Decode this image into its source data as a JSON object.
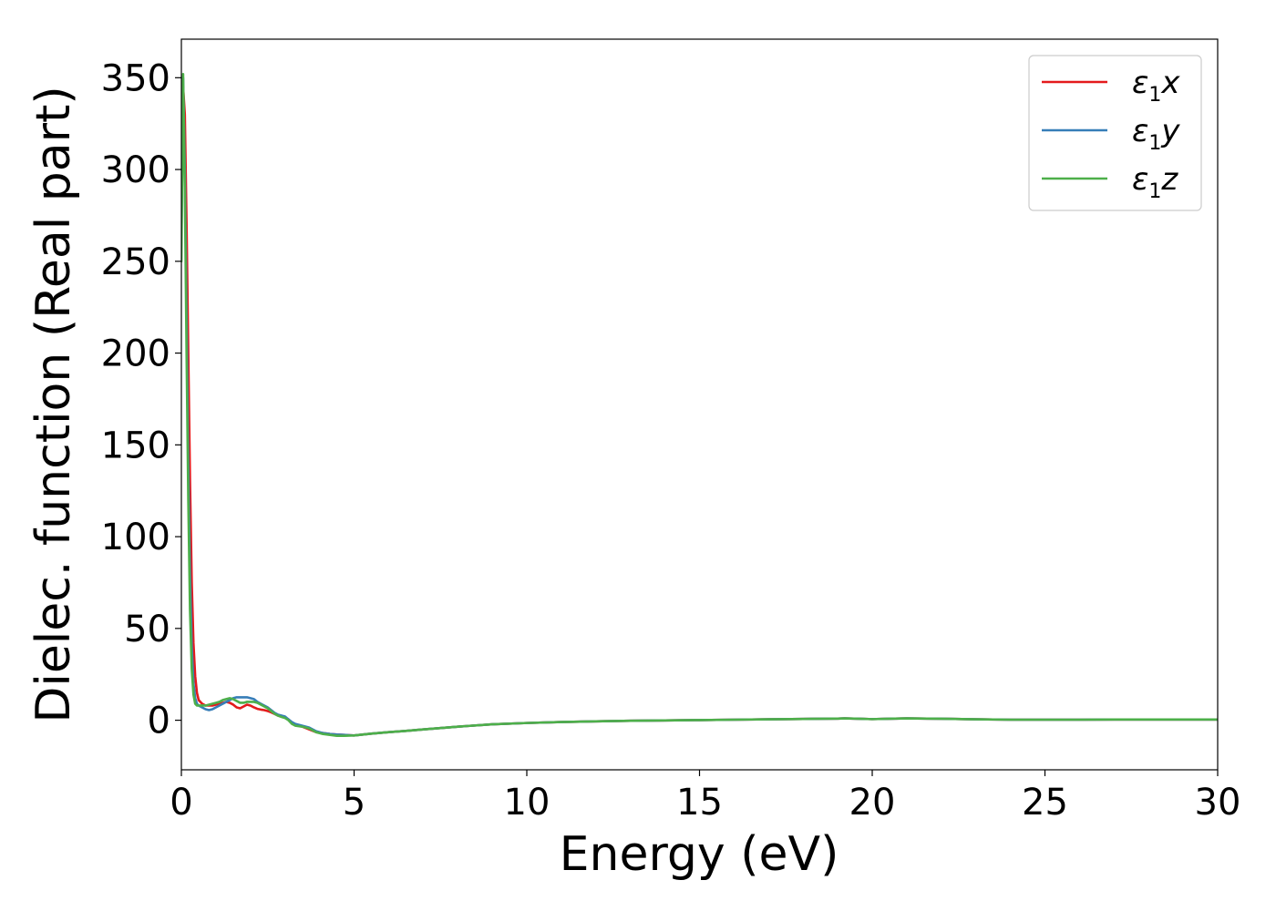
{
  "chart_data": {
    "type": "line",
    "xlabel": "Energy (eV)",
    "ylabel": "Dielec. function (Real part)",
    "xlim": [
      0,
      30
    ],
    "ylim": [
      -27,
      371
    ],
    "xticks": [
      0,
      5,
      10,
      15,
      20,
      25,
      30
    ],
    "yticks": [
      0,
      50,
      100,
      150,
      200,
      250,
      300,
      350
    ],
    "grid": false,
    "legend_position": "top-right",
    "series": [
      {
        "name": "ε1x",
        "legend_base": "ε",
        "legend_sub": "1",
        "legend_suffix": "x",
        "color": "#e41a1c",
        "x": [
          0.0,
          0.05,
          0.1,
          0.15,
          0.2,
          0.25,
          0.3,
          0.35,
          0.4,
          0.45,
          0.5,
          0.6,
          0.7,
          0.8,
          0.9,
          1.0,
          1.1,
          1.2,
          1.3,
          1.4,
          1.5,
          1.6,
          1.7,
          1.8,
          1.9,
          2.0,
          2.1,
          2.2,
          2.3,
          2.4,
          2.5,
          2.6,
          2.7,
          2.8,
          2.9,
          3.0,
          3.1,
          3.2,
          3.3,
          3.5,
          3.7,
          3.9,
          4.1,
          4.3,
          4.5,
          4.7,
          5.0,
          5.5,
          6.0,
          6.5,
          7.0,
          8.0,
          9.0,
          10.0,
          11.0,
          12.0,
          13.0,
          14.0,
          15.0,
          16.0,
          17.0,
          18.0,
          19.0,
          19.2,
          19.6,
          20.0,
          20.5,
          21.0,
          22.0,
          23.0,
          24.0,
          25.0,
          26.0,
          27.0,
          28.0,
          29.0,
          30.0
        ],
        "y": [
          290,
          345,
          330,
          270,
          200,
          130,
          75,
          42,
          24,
          15,
          11,
          9,
          8,
          8,
          8,
          8.5,
          9,
          9.5,
          10,
          9.5,
          8.5,
          7,
          6.5,
          7.5,
          8.5,
          8,
          7,
          6.2,
          5.8,
          5.5,
          5,
          4.3,
          3.4,
          2.5,
          2,
          1.5,
          0.5,
          -1.5,
          -2.5,
          -3.5,
          -5,
          -6.5,
          -7,
          -7.5,
          -7.8,
          -8,
          -8.3,
          -7.3,
          -6.5,
          -5.8,
          -5,
          -3.5,
          -2.2,
          -1.5,
          -1,
          -0.6,
          -0.3,
          -0.1,
          0.1,
          0.3,
          0.5,
          0.7,
          0.9,
          1.0,
          0.8,
          0.6,
          0.8,
          1.0,
          0.8,
          0.5,
          0.3,
          0.3,
          0.3,
          0.4,
          0.4,
          0.4,
          0.4
        ]
      },
      {
        "name": "ε1y",
        "legend_base": "ε",
        "legend_sub": "1",
        "legend_suffix": "y",
        "color": "#377eb8",
        "x": [
          0.0,
          0.05,
          0.1,
          0.15,
          0.2,
          0.25,
          0.3,
          0.35,
          0.4,
          0.45,
          0.5,
          0.6,
          0.7,
          0.8,
          0.9,
          1.0,
          1.1,
          1.2,
          1.3,
          1.4,
          1.5,
          1.6,
          1.7,
          1.8,
          1.9,
          2.0,
          2.1,
          2.2,
          2.3,
          2.4,
          2.5,
          2.6,
          2.7,
          2.8,
          2.9,
          3.0,
          3.1,
          3.2,
          3.3,
          3.5,
          3.7,
          3.9,
          4.1,
          4.3,
          4.5,
          4.7,
          5.0,
          5.5,
          6.0,
          6.5,
          7.0,
          8.0,
          9.0,
          10.0,
          11.0,
          12.0,
          13.0,
          14.0,
          15.0,
          16.0,
          17.0,
          18.0,
          19.0,
          19.2,
          19.6,
          20.0,
          20.5,
          21.0,
          22.0,
          23.0,
          24.0,
          25.0,
          26.0,
          27.0,
          28.0,
          29.0,
          30.0
        ],
        "y": [
          260,
          350,
          300,
          220,
          140,
          80,
          40,
          20,
          12,
          9,
          8,
          7,
          6,
          5.5,
          6,
          7,
          8,
          9,
          10,
          11,
          12,
          12.5,
          12.5,
          12.5,
          12.5,
          12,
          11.5,
          10,
          9,
          8,
          7,
          5.5,
          4,
          3,
          2.5,
          2,
          0.5,
          -1,
          -2,
          -3,
          -4,
          -6,
          -7,
          -7.5,
          -7.8,
          -8,
          -8.3,
          -7.3,
          -6.5,
          -5.8,
          -5,
          -3.5,
          -2.2,
          -1.5,
          -1,
          -0.6,
          -0.3,
          -0.1,
          0.1,
          0.3,
          0.5,
          0.7,
          0.9,
          1.0,
          0.8,
          0.6,
          0.8,
          1.0,
          0.8,
          0.5,
          0.3,
          0.3,
          0.3,
          0.4,
          0.4,
          0.4,
          0.4
        ]
      },
      {
        "name": "ε1z",
        "legend_base": "ε",
        "legend_sub": "1",
        "legend_suffix": "z",
        "color": "#4daf4a",
        "x": [
          0.0,
          0.05,
          0.1,
          0.15,
          0.2,
          0.25,
          0.3,
          0.35,
          0.4,
          0.45,
          0.5,
          0.6,
          0.7,
          0.8,
          0.9,
          1.0,
          1.1,
          1.2,
          1.3,
          1.4,
          1.5,
          1.6,
          1.7,
          1.8,
          1.9,
          2.0,
          2.1,
          2.2,
          2.3,
          2.4,
          2.5,
          2.6,
          2.7,
          2.8,
          2.9,
          3.0,
          3.1,
          3.2,
          3.3,
          3.5,
          3.7,
          3.9,
          4.1,
          4.3,
          4.5,
          4.7,
          5.0,
          5.5,
          6.0,
          6.5,
          7.0,
          8.0,
          9.0,
          10.0,
          11.0,
          12.0,
          13.0,
          14.0,
          15.0,
          16.0,
          17.0,
          18.0,
          19.0,
          19.2,
          19.6,
          20.0,
          20.5,
          21.0,
          22.0,
          23.0,
          24.0,
          25.0,
          26.0,
          27.0,
          28.0,
          29.0,
          30.0
        ],
        "y": [
          250,
          352,
          290,
          200,
          120,
          60,
          28,
          14,
          9,
          8,
          8,
          8,
          8,
          8.5,
          9,
          9.5,
          10,
          11,
          11.5,
          12,
          11.5,
          10.5,
          9.5,
          9.5,
          10,
          10,
          10,
          9.5,
          8.5,
          7.5,
          6.5,
          5,
          3.5,
          2.5,
          1.8,
          1.2,
          0,
          -2,
          -3,
          -3.5,
          -4.5,
          -6.5,
          -7.5,
          -8,
          -8.5,
          -8.5,
          -8.3,
          -7.3,
          -6.5,
          -5.8,
          -5,
          -3.5,
          -2.2,
          -1.5,
          -1,
          -0.6,
          -0.3,
          -0.1,
          0.1,
          0.3,
          0.5,
          0.7,
          0.9,
          1.0,
          0.8,
          0.6,
          0.8,
          1.0,
          0.8,
          0.5,
          0.3,
          0.3,
          0.3,
          0.4,
          0.4,
          0.4,
          0.4
        ]
      }
    ]
  }
}
